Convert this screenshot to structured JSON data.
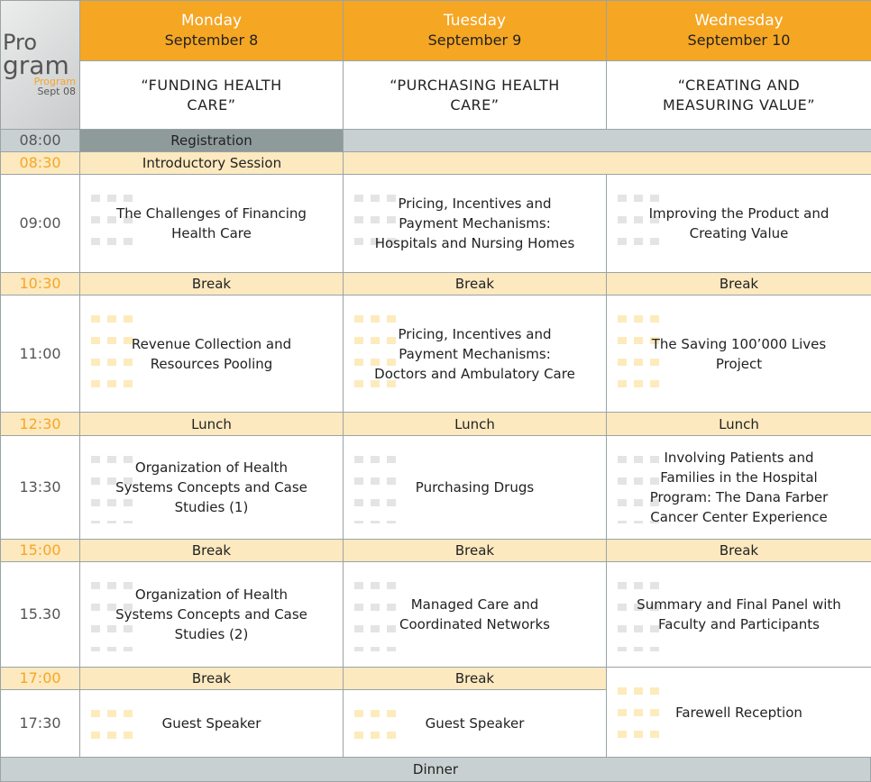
{
  "logo": {
    "line1": "Pro",
    "line2": "gram",
    "sub1": "Program",
    "sub2": "Sept 08"
  },
  "days": [
    {
      "day": "Monday",
      "date": "September 8",
      "theme": "“FUNDING HEALTH CARE”"
    },
    {
      "day": "Tuesday",
      "date": "September 9",
      "theme": "“PURCHASING HEALTH CARE”"
    },
    {
      "day": "Wednesday",
      "date": "September 10",
      "theme": "“CREATING AND MEASURING VALUE”"
    }
  ],
  "rows": [
    {
      "time": "08:00",
      "cells": [
        "Registration"
      ]
    },
    {
      "time": "08:30",
      "cells": [
        "Introductory Session"
      ]
    },
    {
      "time": "09:00",
      "cells": [
        "The Challenges of Financing Health Care",
        "Pricing, Incentives and Payment Mechanisms: Hospitals and Nursing Homes",
        "Improving the Product and Creating Value"
      ]
    },
    {
      "time": "10:30",
      "cells": [
        "Break",
        "Break",
        "Break"
      ]
    },
    {
      "time": "11:00",
      "cells": [
        "Revenue Collection and Resources Pooling",
        "Pricing, Incentives and Payment Mechanisms: Doctors and Ambulatory Care",
        "The Saving 100’000 Lives Project"
      ]
    },
    {
      "time": "12:30",
      "cells": [
        "Lunch",
        "Lunch",
        "Lunch"
      ]
    },
    {
      "time": "13:30",
      "cells": [
        "Organization of Health Systems  Concepts and Case Studies (1)",
        "Purchasing Drugs",
        "Involving Patients and Families in the Hospital Program: The Dana Farber Cancer Center Experience"
      ]
    },
    {
      "time": "15:00",
      "cells": [
        "Break",
        "Break",
        "Break"
      ]
    },
    {
      "time": "15.30",
      "cells": [
        "Organization of Health Systems  Concepts and Case Studies (2)",
        "Managed Care and Coordinated Networks",
        "Summary and Final Panel with Faculty and Participants"
      ]
    },
    {
      "time": "17:00",
      "cells": [
        "Break",
        "Break"
      ]
    },
    {
      "time": "17:30",
      "cells": [
        "Guest Speaker",
        "Guest Speaker",
        "Farewell Reception"
      ]
    }
  ],
  "dinner": "Dinner"
}
